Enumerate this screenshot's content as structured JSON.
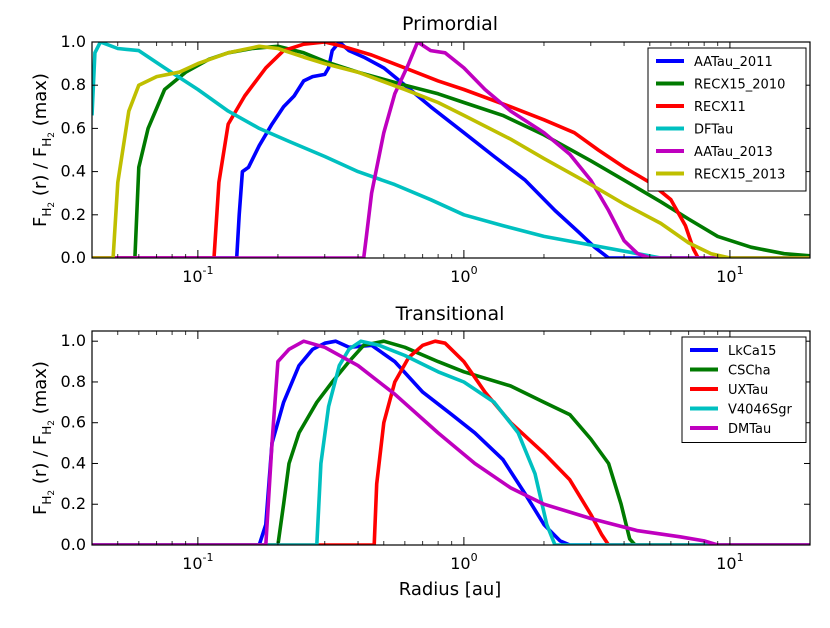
{
  "chart_data": [
    {
      "type": "line",
      "title": "Primordial",
      "xlabel": "",
      "ylabel": "F_H2 (r) / F_H2 (max)",
      "xscale": "log",
      "xlim": [
        0.04,
        20
      ],
      "ylim": [
        0,
        1.0
      ],
      "yticks": [
        "0.0",
        "0.2",
        "0.4",
        "0.6",
        "0.8",
        "1.0"
      ],
      "xticks": [
        {
          "v": 0.1,
          "label": "10",
          "exp": "-1"
        },
        {
          "v": 1,
          "label": "10",
          "exp": "0"
        },
        {
          "v": 10,
          "label": "10",
          "exp": "1"
        }
      ],
      "legend": "top-right",
      "series": [
        {
          "name": "AATau_2011",
          "color": "#0000ff",
          "points": [
            [
              0.04,
              0
            ],
            [
              0.14,
              0
            ],
            [
              0.143,
              0.2
            ],
            [
              0.147,
              0.4
            ],
            [
              0.155,
              0.42
            ],
            [
              0.17,
              0.52
            ],
            [
              0.19,
              0.62
            ],
            [
              0.21,
              0.7
            ],
            [
              0.23,
              0.75
            ],
            [
              0.25,
              0.82
            ],
            [
              0.27,
              0.84
            ],
            [
              0.3,
              0.85
            ],
            [
              0.31,
              0.88
            ],
            [
              0.32,
              0.96
            ],
            [
              0.34,
              1.0
            ],
            [
              0.37,
              0.96
            ],
            [
              0.42,
              0.93
            ],
            [
              0.5,
              0.88
            ],
            [
              0.6,
              0.8
            ],
            [
              0.75,
              0.7
            ],
            [
              1.0,
              0.58
            ],
            [
              1.3,
              0.47
            ],
            [
              1.7,
              0.36
            ],
            [
              2.2,
              0.22
            ],
            [
              2.7,
              0.12
            ],
            [
              3.1,
              0.05
            ],
            [
              3.5,
              0.0
            ],
            [
              20,
              0
            ]
          ]
        },
        {
          "name": "RECX15_2010",
          "color": "#007a00",
          "points": [
            [
              0.04,
              0
            ],
            [
              0.058,
              0
            ],
            [
              0.06,
              0.42
            ],
            [
              0.065,
              0.6
            ],
            [
              0.075,
              0.78
            ],
            [
              0.09,
              0.86
            ],
            [
              0.11,
              0.92
            ],
            [
              0.13,
              0.95
            ],
            [
              0.16,
              0.97
            ],
            [
              0.2,
              0.98
            ],
            [
              0.25,
              0.95
            ],
            [
              0.3,
              0.91
            ],
            [
              0.4,
              0.86
            ],
            [
              0.6,
              0.8
            ],
            [
              0.8,
              0.76
            ],
            [
              1.0,
              0.72
            ],
            [
              1.4,
              0.66
            ],
            [
              2.0,
              0.57
            ],
            [
              3.0,
              0.45
            ],
            [
              4.0,
              0.36
            ],
            [
              5.5,
              0.26
            ],
            [
              7.0,
              0.18
            ],
            [
              9.0,
              0.1
            ],
            [
              12,
              0.05
            ],
            [
              16,
              0.02
            ],
            [
              20,
              0.01
            ]
          ]
        },
        {
          "name": "RECX11",
          "color": "#ff0000",
          "points": [
            [
              0.04,
              0
            ],
            [
              0.115,
              0
            ],
            [
              0.12,
              0.35
            ],
            [
              0.13,
              0.62
            ],
            [
              0.15,
              0.75
            ],
            [
              0.18,
              0.88
            ],
            [
              0.21,
              0.96
            ],
            [
              0.25,
              0.99
            ],
            [
              0.3,
              1.0
            ],
            [
              0.35,
              0.98
            ],
            [
              0.45,
              0.94
            ],
            [
              0.6,
              0.88
            ],
            [
              0.8,
              0.82
            ],
            [
              1.0,
              0.78
            ],
            [
              1.5,
              0.7
            ],
            [
              2.0,
              0.64
            ],
            [
              2.6,
              0.58
            ],
            [
              3.2,
              0.5
            ],
            [
              4.0,
              0.42
            ],
            [
              5.0,
              0.35
            ],
            [
              6.0,
              0.27
            ],
            [
              6.8,
              0.15
            ],
            [
              7.3,
              0.04
            ],
            [
              7.6,
              0
            ],
            [
              20,
              0
            ]
          ]
        },
        {
          "name": "DFTau",
          "color": "#00c0c0",
          "points": [
            [
              0.04,
              0.66
            ],
            [
              0.041,
              0.95
            ],
            [
              0.043,
              1.0
            ],
            [
              0.05,
              0.97
            ],
            [
              0.06,
              0.96
            ],
            [
              0.075,
              0.88
            ],
            [
              0.1,
              0.78
            ],
            [
              0.13,
              0.68
            ],
            [
              0.17,
              0.6
            ],
            [
              0.22,
              0.54
            ],
            [
              0.3,
              0.47
            ],
            [
              0.4,
              0.4
            ],
            [
              0.55,
              0.34
            ],
            [
              0.75,
              0.27
            ],
            [
              1.0,
              0.2
            ],
            [
              1.4,
              0.15
            ],
            [
              2.0,
              0.1
            ],
            [
              3.0,
              0.06
            ],
            [
              4.5,
              0.02
            ],
            [
              5.5,
              0.0
            ],
            [
              20,
              0
            ]
          ]
        },
        {
          "name": "AATau_2013",
          "color": "#bf00bf",
          "points": [
            [
              0.04,
              0
            ],
            [
              0.42,
              0
            ],
            [
              0.43,
              0.1
            ],
            [
              0.45,
              0.3
            ],
            [
              0.5,
              0.58
            ],
            [
              0.55,
              0.76
            ],
            [
              0.62,
              0.9
            ],
            [
              0.67,
              1.0
            ],
            [
              0.75,
              0.96
            ],
            [
              0.85,
              0.95
            ],
            [
              1.0,
              0.88
            ],
            [
              1.2,
              0.78
            ],
            [
              1.5,
              0.68
            ],
            [
              2.0,
              0.58
            ],
            [
              2.5,
              0.48
            ],
            [
              3.0,
              0.36
            ],
            [
              3.5,
              0.22
            ],
            [
              4.0,
              0.08
            ],
            [
              4.5,
              0.02
            ],
            [
              5.0,
              0.0
            ],
            [
              20,
              0
            ]
          ]
        },
        {
          "name": "RECX15_2013",
          "color": "#bfbf00",
          "points": [
            [
              0.04,
              0
            ],
            [
              0.048,
              0
            ],
            [
              0.05,
              0.35
            ],
            [
              0.055,
              0.68
            ],
            [
              0.06,
              0.8
            ],
            [
              0.07,
              0.84
            ],
            [
              0.085,
              0.86
            ],
            [
              0.1,
              0.9
            ],
            [
              0.13,
              0.95
            ],
            [
              0.17,
              0.98
            ],
            [
              0.2,
              0.97
            ],
            [
              0.25,
              0.93
            ],
            [
              0.3,
              0.9
            ],
            [
              0.4,
              0.86
            ],
            [
              0.6,
              0.78
            ],
            [
              0.8,
              0.72
            ],
            [
              1.0,
              0.66
            ],
            [
              1.5,
              0.55
            ],
            [
              2.0,
              0.46
            ],
            [
              3.0,
              0.34
            ],
            [
              4.0,
              0.25
            ],
            [
              5.5,
              0.16
            ],
            [
              7.0,
              0.07
            ],
            [
              8.5,
              0.02
            ],
            [
              10,
              0
            ],
            [
              20,
              0
            ]
          ]
        }
      ]
    },
    {
      "type": "line",
      "title": "Transitional",
      "xlabel": "Radius [au]",
      "ylabel": "F_H2 (r) / F_H2 (max)",
      "xscale": "log",
      "xlim": [
        0.04,
        20
      ],
      "ylim": [
        0,
        1.05
      ],
      "yticks": [
        "0.0",
        "0.2",
        "0.4",
        "0.6",
        "0.8",
        "1.0"
      ],
      "xticks": [
        {
          "v": 0.1,
          "label": "10",
          "exp": "-1"
        },
        {
          "v": 1,
          "label": "10",
          "exp": "0"
        },
        {
          "v": 10,
          "label": "10",
          "exp": "1"
        }
      ],
      "legend": "top-right",
      "series": [
        {
          "name": "LkCa15",
          "color": "#0000ff",
          "points": [
            [
              0.04,
              0
            ],
            [
              0.17,
              0
            ],
            [
              0.18,
              0.1
            ],
            [
              0.19,
              0.5
            ],
            [
              0.21,
              0.7
            ],
            [
              0.24,
              0.88
            ],
            [
              0.27,
              0.96
            ],
            [
              0.3,
              0.99
            ],
            [
              0.33,
              1.0
            ],
            [
              0.37,
              0.97
            ],
            [
              0.45,
              0.98
            ],
            [
              0.55,
              0.9
            ],
            [
              0.7,
              0.75
            ],
            [
              0.9,
              0.64
            ],
            [
              1.1,
              0.55
            ],
            [
              1.4,
              0.42
            ],
            [
              1.7,
              0.25
            ],
            [
              2.0,
              0.1
            ],
            [
              2.3,
              0.02
            ],
            [
              2.5,
              0
            ],
            [
              20,
              0
            ]
          ]
        },
        {
          "name": "CSCha",
          "color": "#007a00",
          "points": [
            [
              0.04,
              0
            ],
            [
              0.2,
              0
            ],
            [
              0.21,
              0.2
            ],
            [
              0.22,
              0.4
            ],
            [
              0.24,
              0.55
            ],
            [
              0.28,
              0.7
            ],
            [
              0.32,
              0.8
            ],
            [
              0.37,
              0.9
            ],
            [
              0.42,
              0.98
            ],
            [
              0.5,
              1.0
            ],
            [
              0.6,
              0.97
            ],
            [
              0.8,
              0.9
            ],
            [
              1.0,
              0.85
            ],
            [
              1.5,
              0.78
            ],
            [
              2.0,
              0.7
            ],
            [
              2.5,
              0.64
            ],
            [
              3.0,
              0.52
            ],
            [
              3.5,
              0.4
            ],
            [
              3.9,
              0.2
            ],
            [
              4.2,
              0.03
            ],
            [
              4.4,
              0
            ],
            [
              20,
              0
            ]
          ]
        },
        {
          "name": "UXTau",
          "color": "#ff0000",
          "points": [
            [
              0.04,
              0
            ],
            [
              0.46,
              0
            ],
            [
              0.47,
              0.3
            ],
            [
              0.5,
              0.6
            ],
            [
              0.55,
              0.8
            ],
            [
              0.62,
              0.92
            ],
            [
              0.7,
              0.98
            ],
            [
              0.78,
              1.0
            ],
            [
              0.85,
              0.99
            ],
            [
              1.0,
              0.9
            ],
            [
              1.2,
              0.75
            ],
            [
              1.5,
              0.6
            ],
            [
              2.0,
              0.45
            ],
            [
              2.5,
              0.32
            ],
            [
              3.0,
              0.15
            ],
            [
              3.3,
              0.05
            ],
            [
              3.5,
              0
            ],
            [
              20,
              0
            ]
          ]
        },
        {
          "name": "V4046Sgr",
          "color": "#00c0c0",
          "points": [
            [
              0.04,
              0
            ],
            [
              0.28,
              0
            ],
            [
              0.29,
              0.4
            ],
            [
              0.31,
              0.68
            ],
            [
              0.34,
              0.88
            ],
            [
              0.37,
              0.96
            ],
            [
              0.41,
              1.0
            ],
            [
              0.48,
              0.98
            ],
            [
              0.6,
              0.93
            ],
            [
              0.8,
              0.85
            ],
            [
              1.0,
              0.8
            ],
            [
              1.3,
              0.7
            ],
            [
              1.6,
              0.55
            ],
            [
              1.85,
              0.35
            ],
            [
              2.05,
              0.1
            ],
            [
              2.2,
              0
            ],
            [
              20,
              0
            ]
          ]
        },
        {
          "name": "DMTau",
          "color": "#bf00bf",
          "points": [
            [
              0.04,
              0
            ],
            [
              0.18,
              0
            ],
            [
              0.19,
              0.5
            ],
            [
              0.2,
              0.9
            ],
            [
              0.22,
              0.96
            ],
            [
              0.25,
              1.0
            ],
            [
              0.3,
              0.97
            ],
            [
              0.4,
              0.88
            ],
            [
              0.55,
              0.74
            ],
            [
              0.8,
              0.55
            ],
            [
              1.1,
              0.4
            ],
            [
              1.5,
              0.28
            ],
            [
              2.0,
              0.2
            ],
            [
              3.0,
              0.13
            ],
            [
              4.5,
              0.07
            ],
            [
              6.5,
              0.04
            ],
            [
              8.0,
              0.02
            ],
            [
              9.0,
              0
            ],
            [
              20,
              0
            ]
          ]
        }
      ]
    }
  ]
}
